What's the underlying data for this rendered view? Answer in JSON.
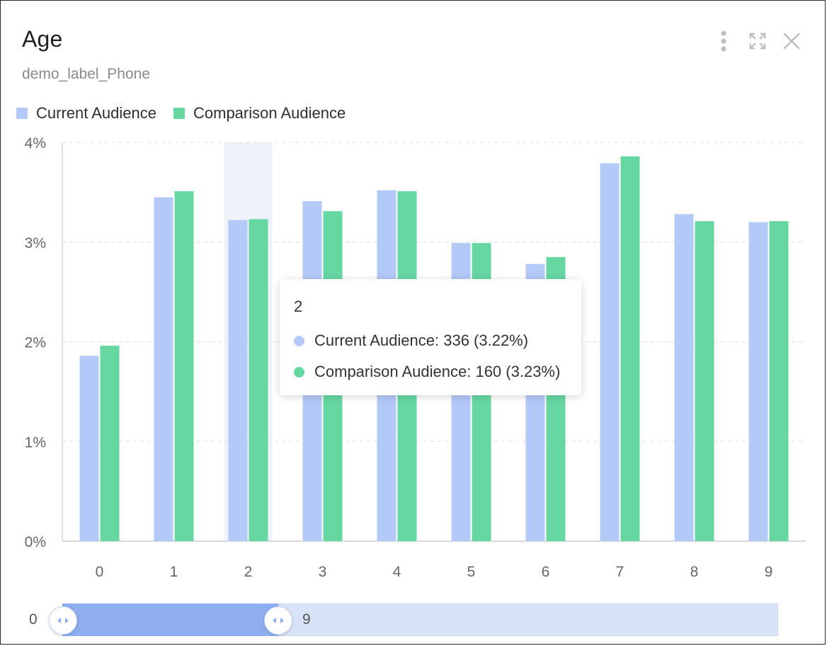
{
  "header": {
    "title": "Age",
    "subtitle": "demo_label_Phone"
  },
  "icons": [
    "more-vertical-icon",
    "fullscreen-icon",
    "close-icon"
  ],
  "legend": [
    {
      "name": "Current Audience",
      "color": "#b3c9f7"
    },
    {
      "name": "Comparison Audience",
      "color": "#67d7a2"
    }
  ],
  "chart_data": {
    "type": "bar",
    "title": "Age",
    "subtitle": "demo_label_Phone",
    "categories": [
      "0",
      "1",
      "2",
      "3",
      "4",
      "5",
      "6",
      "7",
      "8",
      "9"
    ],
    "series": [
      {
        "name": "Current Audience",
        "color": "#b3c9f7",
        "values": [
          1.86,
          3.45,
          3.22,
          3.41,
          3.52,
          2.99,
          2.78,
          3.79,
          3.28,
          3.2
        ]
      },
      {
        "name": "Comparison Audience",
        "color": "#67d7a2",
        "values": [
          1.96,
          3.51,
          3.23,
          3.31,
          3.51,
          2.99,
          2.85,
          3.86,
          3.21,
          3.21
        ]
      }
    ],
    "ylim": [
      0,
      4
    ],
    "yticks": [
      "0%",
      "1%",
      "2%",
      "3%",
      "4%"
    ],
    "grid": true,
    "legend_position": "top-left",
    "highlighted_category": "2"
  },
  "tooltip": {
    "title": "2",
    "rows": [
      {
        "text": "Current Audience: 336 (3.22%)",
        "color": "#b3c9f7"
      },
      {
        "text": "Comparison Audience: 160 (3.23%)",
        "color": "#67d7a2"
      }
    ]
  },
  "datazoom": {
    "start_label": "0",
    "end_label": "9"
  }
}
